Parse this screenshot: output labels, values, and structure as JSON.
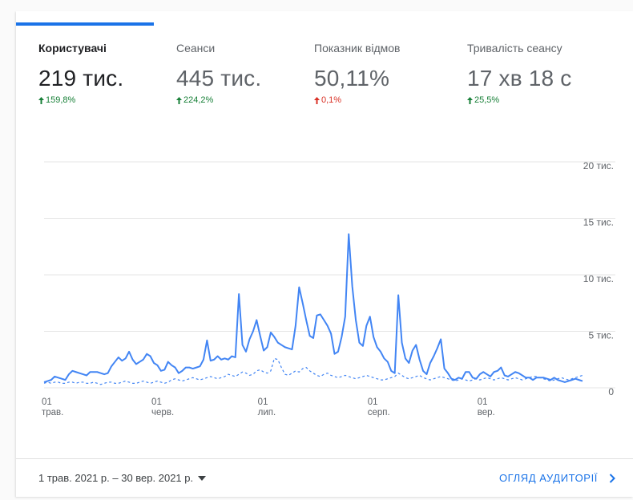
{
  "metrics": [
    {
      "label": "Користувачі",
      "value": "219 тис.",
      "change": "159,8%",
      "direction": "up"
    },
    {
      "label": "Сеанси",
      "value": "445 тис.",
      "change": "224,2%",
      "direction": "up"
    },
    {
      "label": "Показник відмов",
      "value": "50,11%",
      "change": "0,1%",
      "direction": "down"
    },
    {
      "label": "Тривалість сеансу",
      "value": "17 хв 18 с",
      "change": "25,5%",
      "direction": "up"
    }
  ],
  "chart_data": {
    "type": "line",
    "categories": [
      "01 трав.",
      null,
      null,
      null,
      null,
      null,
      null,
      null,
      null,
      null,
      null,
      null,
      null,
      null,
      null,
      null,
      null,
      null,
      null,
      null,
      null,
      null,
      null,
      null,
      null,
      null,
      null,
      null,
      null,
      null,
      null,
      "01 черв.",
      null,
      null,
      null,
      null,
      null,
      null,
      null,
      null,
      null,
      null,
      null,
      null,
      null,
      null,
      null,
      null,
      null,
      null,
      null,
      null,
      null,
      null,
      null,
      null,
      null,
      null,
      null,
      null,
      null,
      "01 лип.",
      null,
      null,
      null,
      null,
      null,
      null,
      null,
      null,
      null,
      null,
      null,
      null,
      null,
      null,
      null,
      null,
      null,
      null,
      null,
      null,
      null,
      null,
      null,
      null,
      null,
      null,
      null,
      null,
      null,
      null,
      "01 серп.",
      null,
      null,
      null,
      null,
      null,
      null,
      null,
      null,
      null,
      null,
      null,
      null,
      null,
      null,
      null,
      null,
      null,
      null,
      null,
      null,
      null,
      null,
      null,
      null,
      null,
      null,
      null,
      null,
      null,
      null,
      "01 вер.",
      null,
      null,
      null,
      null,
      null,
      null,
      null,
      null,
      null,
      null,
      null,
      null,
      null,
      null,
      null,
      null,
      null,
      null,
      null,
      null,
      null,
      null,
      null,
      null,
      null,
      null,
      null,
      null,
      null
    ],
    "series": [
      {
        "color": "#4285f4",
        "dashed": false,
        "values": [
          500,
          600,
          700,
          1000,
          900,
          800,
          700,
          1200,
          1500,
          1400,
          1300,
          1200,
          1100,
          1400,
          1400,
          1400,
          1300,
          1200,
          1300,
          1900,
          2300,
          2700,
          2400,
          2600,
          3200,
          2500,
          2100,
          2300,
          2500,
          3000,
          2800,
          2200,
          2000,
          1500,
          1600,
          2300,
          2000,
          1800,
          1300,
          1500,
          1800,
          1800,
          1700,
          1800,
          1900,
          2500,
          4200,
          2400,
          2500,
          2800,
          2500,
          2600,
          2500,
          2800,
          2700,
          8300,
          3800,
          3200,
          4300,
          5000,
          6000,
          4600,
          3300,
          3600,
          4900,
          4500,
          4000,
          3800,
          3600,
          3500,
          3400,
          5500,
          8900,
          7500,
          6000,
          4600,
          4400,
          6400,
          6500,
          6000,
          5500,
          4800,
          3000,
          3200,
          4500,
          6300,
          13600,
          9000,
          6000,
          4000,
          3700,
          5500,
          6300,
          4500,
          3600,
          3200,
          2600,
          2300,
          1500,
          1300,
          8200,
          4000,
          2600,
          2200,
          3300,
          3800,
          2500,
          1500,
          1200,
          2200,
          2800,
          3500,
          4300,
          1700,
          1300,
          800,
          700,
          900,
          800,
          1400,
          1400,
          900,
          800,
          1200,
          1400,
          1200,
          1000,
          1400,
          1500,
          1800,
          1100,
          1000,
          1200,
          1400,
          1300,
          1100,
          900,
          900,
          700,
          900,
          900,
          900,
          800,
          700,
          900,
          700,
          600,
          500,
          600,
          700,
          800,
          700,
          600
        ]
      },
      {
        "color": "#4285f4",
        "dashed": true,
        "values": [
          400,
          500,
          400,
          500,
          500,
          400,
          400,
          500,
          500,
          400,
          500,
          500,
          400,
          400,
          500,
          400,
          300,
          400,
          500,
          500,
          400,
          400,
          500,
          600,
          500,
          400,
          400,
          500,
          600,
          500,
          400,
          500,
          600,
          500,
          400,
          500,
          700,
          800,
          700,
          600,
          700,
          800,
          900,
          800,
          700,
          800,
          900,
          1000,
          900,
          800,
          900,
          1000,
          1200,
          1100,
          1000,
          1200,
          1400,
          1300,
          1100,
          1200,
          1500,
          1600,
          1400,
          1300,
          1500,
          2600,
          2500,
          1800,
          1200,
          1100,
          1300,
          1500,
          1400,
          1700,
          1800,
          1500,
          1300,
          1100,
          1000,
          1200,
          1300,
          1100,
          1000,
          900,
          1000,
          1100,
          1000,
          900,
          800,
          900,
          1000,
          1100,
          1000,
          900,
          800,
          700,
          700,
          800,
          900,
          1000,
          1300,
          1100,
          900,
          800,
          900,
          1000,
          1100,
          900,
          800,
          700,
          800,
          900,
          1000,
          900,
          800,
          700,
          600,
          700,
          800,
          700,
          600,
          700,
          800,
          700,
          800,
          900,
          800,
          700,
          800,
          900,
          800,
          700,
          800,
          900,
          800,
          700,
          800,
          900,
          1000,
          1000,
          900,
          800,
          700,
          600,
          700,
          800,
          900,
          800,
          700,
          800,
          900,
          1000,
          1100
        ]
      }
    ],
    "ylim": [
      0,
      20000
    ],
    "yticks": [
      0,
      {
        "value": 5000,
        "label": "5 тис."
      },
      {
        "value": 10000,
        "label": "10 тис."
      },
      {
        "value": 15000,
        "label": "15 тис."
      },
      {
        "value": 20000,
        "label": "20 тис."
      }
    ],
    "grid": true
  },
  "footer": {
    "date_range": "1 трав. 2021 р. – 30 вер. 2021 р.",
    "link": "ОГЛЯД АУДИТОРІЇ"
  }
}
